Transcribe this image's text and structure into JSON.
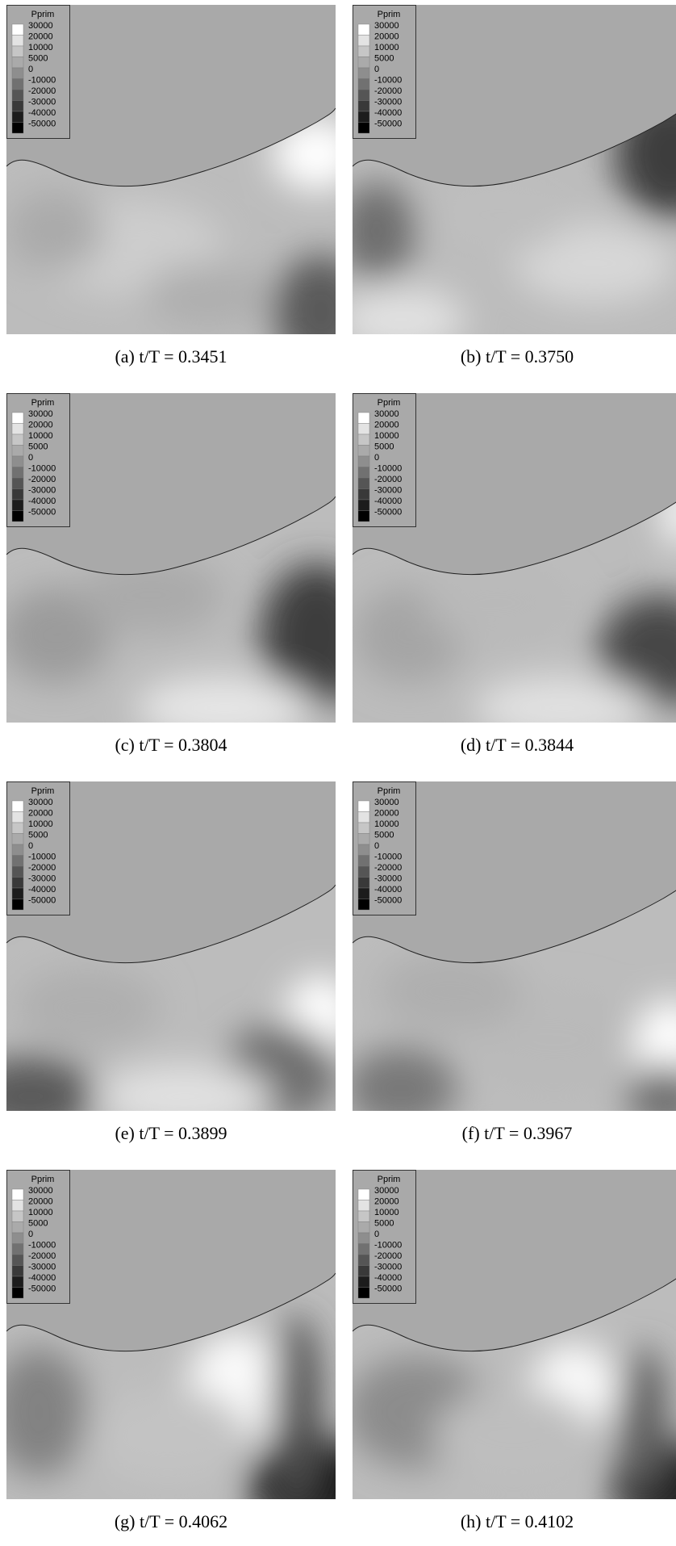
{
  "legend": {
    "title": "Pprim",
    "levels": [
      30000,
      20000,
      10000,
      5000,
      0,
      -10000,
      -20000,
      -30000,
      -40000,
      -50000
    ]
  },
  "panels": [
    {
      "caption": "(a) t/T = 0.3451"
    },
    {
      "caption": "(b) t/T = 0.3750"
    },
    {
      "caption": "(c) t/T = 0.3804"
    },
    {
      "caption": "(d) t/T = 0.3844"
    },
    {
      "caption": "(e) t/T = 0.3899"
    },
    {
      "caption": "(f) t/T = 0.3967"
    },
    {
      "caption": "(g) t/T = 0.4062"
    },
    {
      "caption": "(h) t/T = 0.4102"
    }
  ]
}
